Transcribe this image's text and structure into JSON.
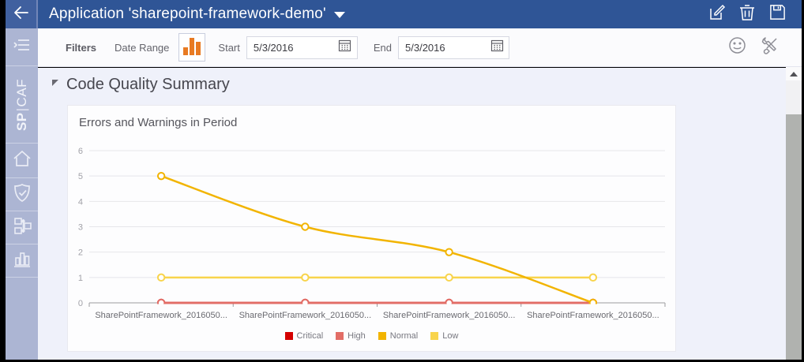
{
  "top_bar": {
    "title": "Application 'sharepoint-framework-demo'",
    "icons": [
      "back-arrow",
      "dropdown-caret",
      "edit",
      "trash",
      "save"
    ]
  },
  "sidebar": {
    "logo_bold": "SP",
    "logo_pipe": "|",
    "logo_rest": "CAF",
    "items": [
      "toggle-menu",
      "spcaf-logo",
      "home",
      "quality-shield",
      "dependencies",
      "reports-chart"
    ]
  },
  "filter_bar": {
    "filters_label": "Filters",
    "date_range_label": "Date Range",
    "start_label": "Start",
    "start_value": "5/3/2016",
    "end_label": "End",
    "end_value": "5/3/2016",
    "icons": [
      "bar-chart-filter",
      "calendar",
      "calendar",
      "smiley-feedback",
      "tools-settings"
    ],
    "accent_orange": "#e87a22"
  },
  "section": {
    "title": "Code Quality Summary"
  },
  "chart_data": {
    "type": "line",
    "title": "Errors and Warnings in Period",
    "categories": [
      "SharePointFramework_2016050...",
      "SharePointFramework_2016050...",
      "SharePointFramework_2016050...",
      "SharePointFramework_2016050..."
    ],
    "series": [
      {
        "name": "Critical",
        "color": "#d40000",
        "values": [
          0,
          0,
          0,
          0
        ],
        "smooth": false
      },
      {
        "name": "High",
        "color": "#e26d66",
        "values": [
          0,
          0,
          0,
          0
        ],
        "smooth": false
      },
      {
        "name": "Low",
        "color": "#f8d44c",
        "values": [
          1,
          1,
          1,
          1
        ],
        "smooth": false
      },
      {
        "name": "Normal",
        "color": "#f2b400",
        "values": [
          5,
          3,
          2,
          0
        ],
        "smooth": true
      }
    ],
    "legend_order": [
      "Critical",
      "High",
      "Normal",
      "Low"
    ],
    "xlabel": "",
    "ylabel": "",
    "ylim": [
      0,
      6
    ],
    "yticks": [
      0,
      1,
      2,
      3,
      4,
      5,
      6
    ],
    "grid": "horizontal",
    "legend_position": "bottom",
    "marker": "circle-outline",
    "colors": {
      "grid_line": "#e6e6ea",
      "axis_line": "#9b9b9f",
      "y_tick_text": "#a1a1a8",
      "x_tick_text": "#6a6a70",
      "legend_text": "#77777f"
    }
  },
  "scrollbar": {
    "has_up_arrow": true
  }
}
